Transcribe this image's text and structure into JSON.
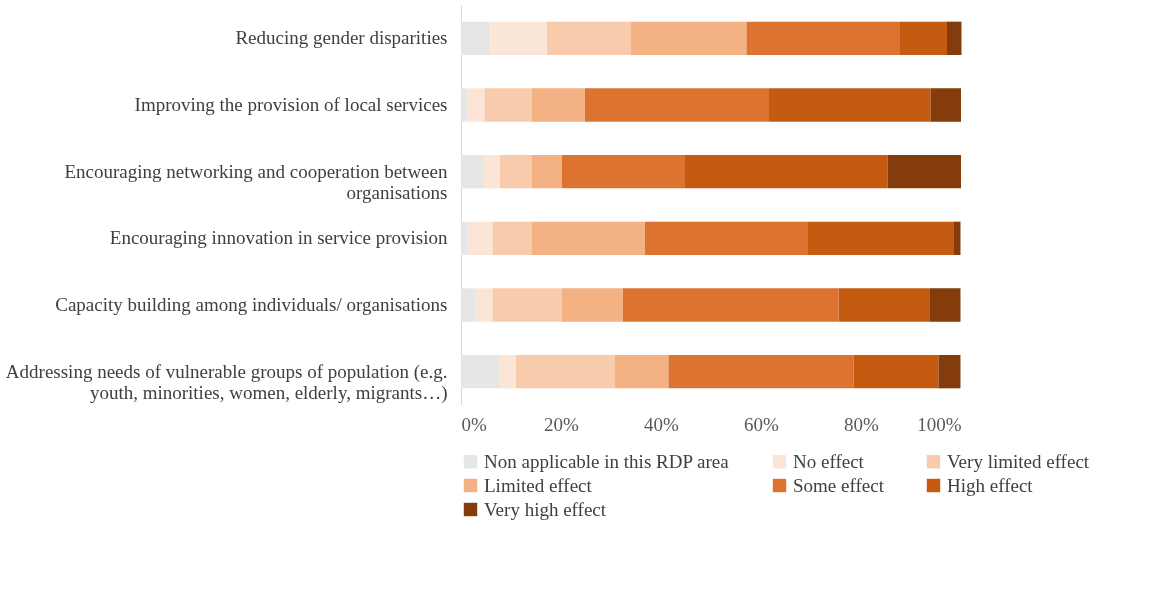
{
  "chart_data": {
    "type": "bar",
    "orientation": "horizontal",
    "stacked": true,
    "categories": [
      "Reducing gender disparities",
      "Improving the provision of local services",
      "Encouraging networking and cooperation between organisations",
      "Encouraging innovation in service provision",
      "Capacity building among individuals/ organisations",
      "Addressing needs of vulnerable groups of population (e.g. youth, minorities, women, elderly, migrants…)"
    ],
    "series": [
      {
        "name": "Non applicable in this RDP area",
        "color": "#e7e6e6",
        "values": [
          5.9,
          1.3,
          4.6,
          1.5,
          3.1,
          7.6
        ]
      },
      {
        "name": "No effect",
        "color": "#fbe5d6",
        "values": [
          11.3,
          3.4,
          3.2,
          4.8,
          3.2,
          3.4
        ]
      },
      {
        "name": "Very limited effect",
        "color": "#f8cbad",
        "values": [
          16.8,
          9.4,
          6.3,
          7.8,
          13.9,
          19.8
        ]
      },
      {
        "name": "Limited effect",
        "color": "#f4b183",
        "values": [
          23.1,
          10.7,
          6.1,
          22.7,
          12.2,
          10.7
        ]
      },
      {
        "name": "Some effect",
        "color": "#dc7331",
        "values": [
          30.7,
          36.8,
          24.6,
          32.6,
          43.1,
          37.0
        ]
      },
      {
        "name": "High effect",
        "color": "#c55a11",
        "values": [
          9.4,
          32.3,
          40.5,
          29.2,
          18.3,
          17.0
        ]
      },
      {
        "name": "Very high effect",
        "color": "#843c0c",
        "values": [
          2.9,
          6.1,
          14.7,
          1.3,
          6.1,
          4.4
        ]
      }
    ],
    "xlim": [
      0,
      100
    ],
    "xticks": [
      {
        "value": 0,
        "label": "0%"
      },
      {
        "value": 20,
        "label": "20%"
      },
      {
        "value": 40,
        "label": "40%"
      },
      {
        "value": 60,
        "label": "60%"
      },
      {
        "value": 80,
        "label": "80%"
      },
      {
        "value": 100,
        "label": "100%"
      }
    ],
    "grid": false,
    "legend": "bottom"
  }
}
